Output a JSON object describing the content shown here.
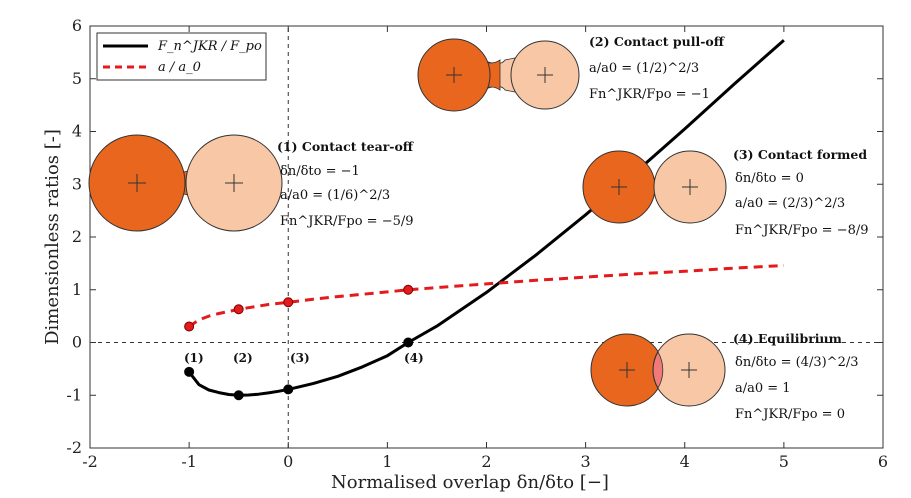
{
  "chart_data": {
    "type": "line",
    "xlabel_text": "Normalised overlap δn/δto [−]",
    "ylabel": "Dimensionless ratios [-]",
    "xlim": [
      -2,
      6
    ],
    "ylim": [
      -2,
      6
    ],
    "xticks": [
      "-2",
      "-1",
      "0",
      "1",
      "2",
      "3",
      "4",
      "5",
      "6"
    ],
    "yticks": [
      "-2",
      "-1",
      "0",
      "1",
      "2",
      "3",
      "4",
      "5",
      "6"
    ],
    "grid": false,
    "legend_position": "top-left",
    "colors": {
      "force": "#000000",
      "radius": "#e41a1c",
      "dark_particle": "#e8661e",
      "light_particle": "#f8c7a5",
      "overlap": "#f07a7a"
    },
    "series": [
      {
        "name": "Fn^JKR/Fpo",
        "legend_label": "F_n^JKR / F_po",
        "style": "solid",
        "color": "#000000",
        "x": [
          -1.0,
          -0.9,
          -0.8,
          -0.7,
          -0.6,
          -0.5,
          -0.4,
          -0.3,
          -0.2,
          -0.1,
          0.0,
          0.25,
          0.5,
          0.75,
          1.0,
          1.21,
          1.5,
          2.0,
          2.5,
          3.0,
          3.5,
          4.0,
          4.5,
          5.0
        ],
        "y": [
          -0.56,
          -0.8,
          -0.9,
          -0.95,
          -0.985,
          -1.0,
          -0.995,
          -0.98,
          -0.955,
          -0.925,
          -0.889,
          -0.78,
          -0.64,
          -0.46,
          -0.25,
          0.0,
          0.31,
          0.95,
          1.66,
          2.42,
          3.22,
          4.05,
          4.9,
          5.73
        ]
      },
      {
        "name": "a/a0",
        "legend_label": "a / a_0",
        "style": "dashed",
        "color": "#e41a1c",
        "x": [
          -1.0,
          -0.9,
          -0.8,
          -0.7,
          -0.6,
          -0.5,
          -0.4,
          -0.2,
          0.0,
          0.25,
          0.5,
          1.0,
          1.21,
          1.5,
          2.0,
          2.5,
          3.0,
          3.5,
          4.0,
          4.5,
          5.0
        ],
        "y": [
          0.303,
          0.43,
          0.5,
          0.55,
          0.59,
          0.63,
          0.66,
          0.72,
          0.763,
          0.82,
          0.87,
          0.96,
          1.0,
          1.04,
          1.11,
          1.18,
          1.24,
          1.3,
          1.35,
          1.41,
          1.46
        ]
      }
    ],
    "key_points": [
      {
        "label": "(1)",
        "x": -1.0,
        "force": -0.556,
        "radius": 0.303
      },
      {
        "label": "(2)",
        "x": -0.5,
        "force": -1.0,
        "radius": 0.63
      },
      {
        "label": "(3)",
        "x": 0.0,
        "force": -0.889,
        "radius": 0.763
      },
      {
        "label": "(4)",
        "x": 1.21,
        "force": 0.0,
        "radius": 1.0
      }
    ],
    "annotations": [
      {
        "title": "(1) Contact tear-off",
        "lines": [
          "δn/δto = −1",
          "a/a0 = (1/6)^2/3",
          "Fn^JKR/Fpo = −5/9"
        ]
      },
      {
        "title": "(2) Contact pull-off",
        "lines": [
          "a/a0 = (1/2)^2/3",
          "Fn^JKR/Fpo = −1"
        ]
      },
      {
        "title": "(3) Contact formed",
        "lines": [
          "δn/δto = 0",
          "a/a0 = (2/3)^2/3",
          "Fn^JKR/Fpo = −8/9"
        ]
      },
      {
        "title": "(4) Equilibrium",
        "lines": [
          "δn/δto = (4/3)^2/3",
          "a/a0 = 1",
          "Fn^JKR/Fpo = 0"
        ]
      }
    ]
  }
}
